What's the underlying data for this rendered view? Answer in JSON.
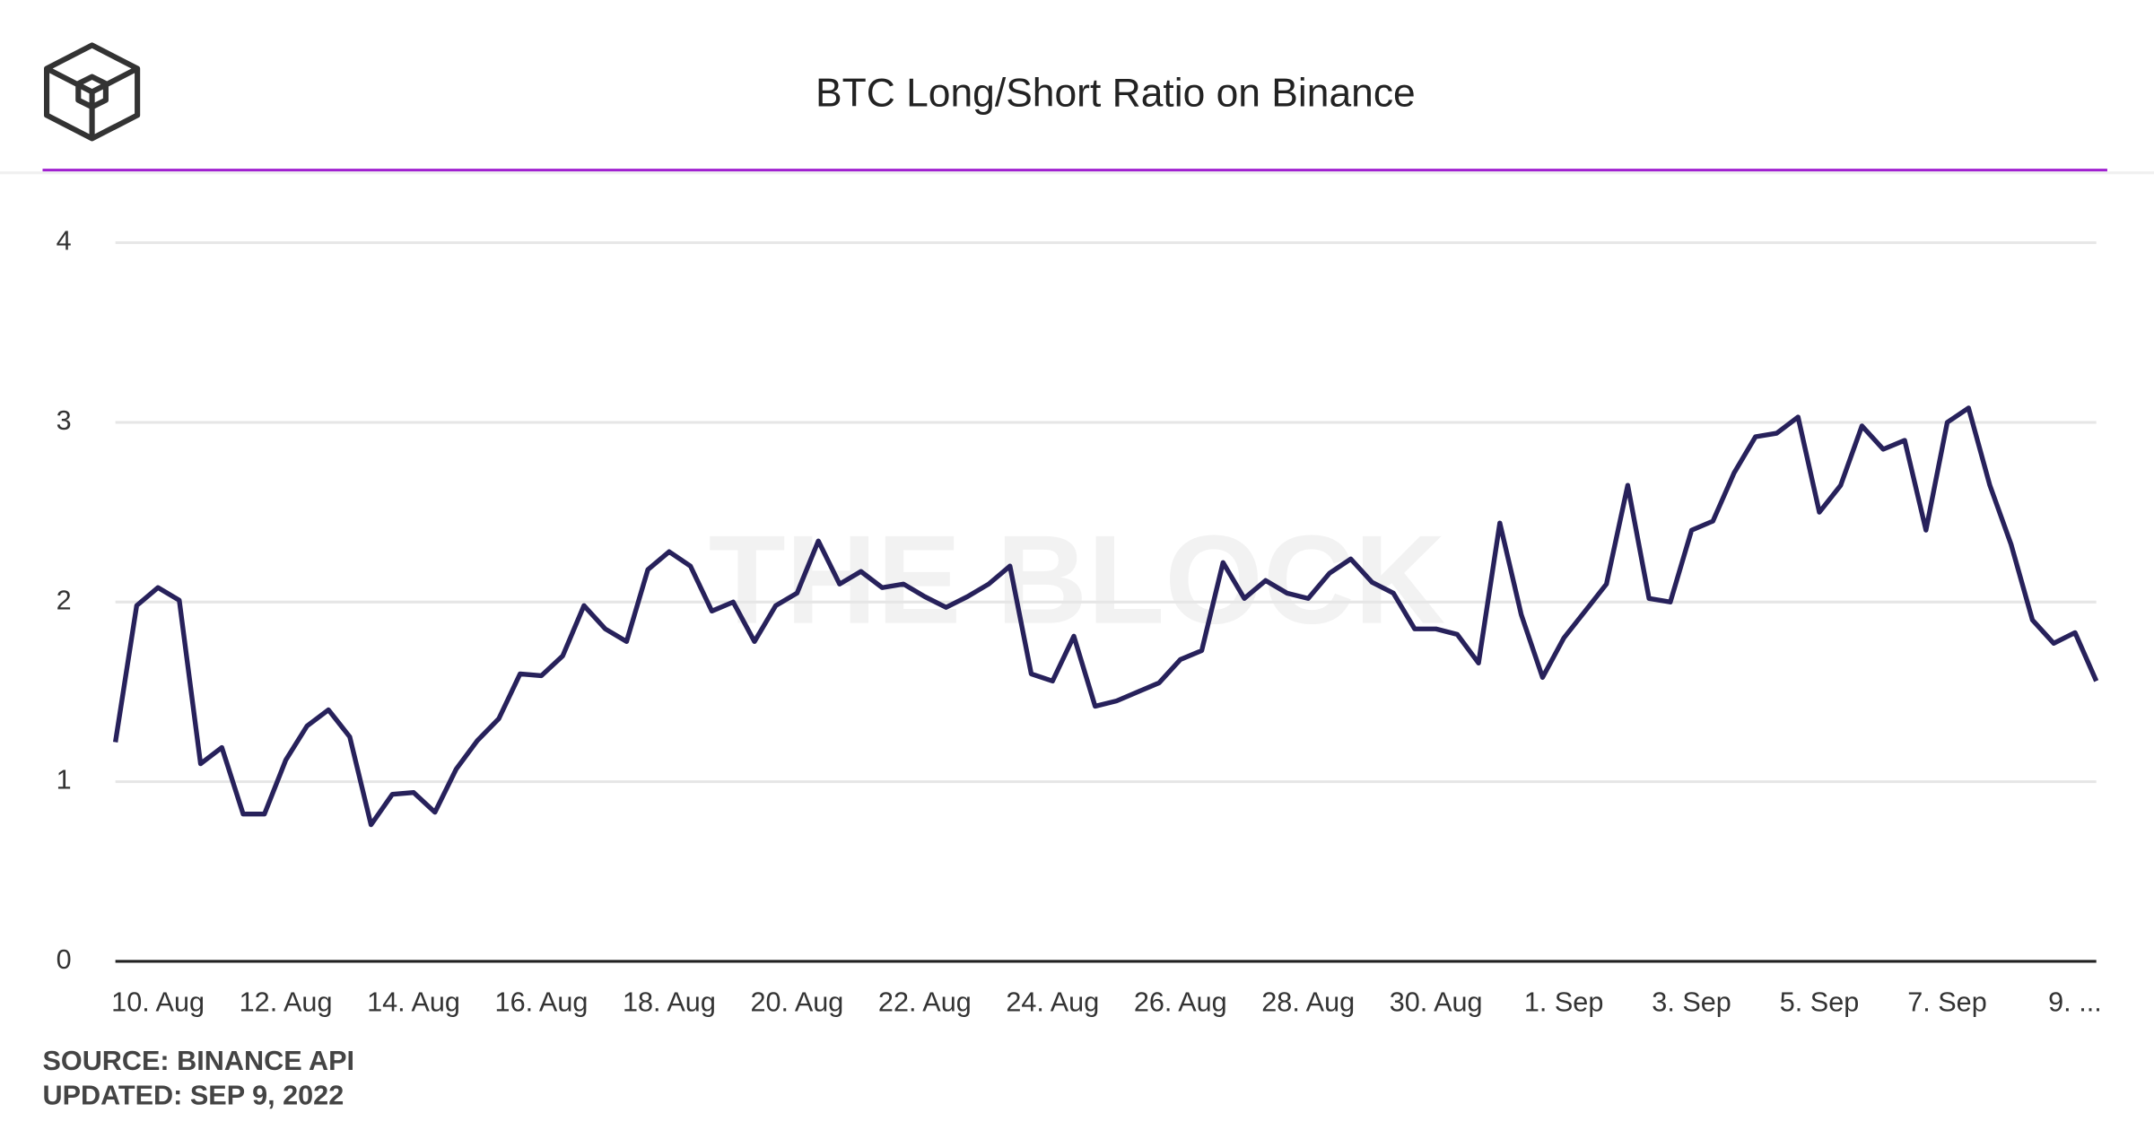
{
  "chart_data": {
    "type": "line",
    "title": "BTC Long/Short Ratio on Binance",
    "watermark": "THE BLOCK",
    "source": "SOURCE: BINANCE API",
    "updated": "UPDATED: SEP 9, 2022",
    "categories": [
      null,
      null,
      "10. Aug",
      null,
      null,
      null,
      null,
      null,
      "12. Aug",
      null,
      null,
      null,
      null,
      null,
      "14. Aug",
      null,
      null,
      null,
      null,
      null,
      "16. Aug",
      null,
      null,
      null,
      null,
      null,
      "18. Aug",
      null,
      null,
      null,
      null,
      null,
      "20. Aug",
      null,
      null,
      null,
      null,
      null,
      "22. Aug",
      null,
      null,
      null,
      null,
      null,
      "24. Aug",
      null,
      null,
      null,
      null,
      null,
      "26. Aug",
      null,
      null,
      null,
      null,
      null,
      "28. Aug",
      null,
      null,
      null,
      null,
      null,
      "30. Aug",
      null,
      null,
      null,
      null,
      null,
      "1. Sep",
      null,
      null,
      null,
      null,
      null,
      "3. Sep",
      null,
      null,
      null,
      null,
      null,
      "5. Sep",
      null,
      null,
      null,
      null,
      null,
      "7. Sep",
      null,
      null,
      null,
      null,
      null,
      "9. ...",
      null
    ],
    "series": [
      {
        "name": "Long/Short Ratio",
        "color": "#27215b",
        "values": [
          1.22,
          1.98,
          2.08,
          2.01,
          1.1,
          1.19,
          0.82,
          0.82,
          1.12,
          1.31,
          1.4,
          1.25,
          0.76,
          0.93,
          0.94,
          0.83,
          1.07,
          1.23,
          1.35,
          1.6,
          1.59,
          1.7,
          1.98,
          1.85,
          1.78,
          2.18,
          2.28,
          2.2,
          1.95,
          2.0,
          1.78,
          1.98,
          2.05,
          2.34,
          2.1,
          2.17,
          2.08,
          2.1,
          2.03,
          1.97,
          2.03,
          2.1,
          2.2,
          1.6,
          1.56,
          1.81,
          1.42,
          1.45,
          1.5,
          1.55,
          1.68,
          1.73,
          2.22,
          2.02,
          2.12,
          2.05,
          2.02,
          2.16,
          2.24,
          2.11,
          2.05,
          1.85,
          1.85,
          1.82,
          1.66,
          2.44,
          1.93,
          1.58,
          1.8,
          1.95,
          2.1,
          2.65,
          2.02,
          2.0,
          2.4,
          2.45,
          2.72,
          2.92,
          2.94,
          3.03,
          2.5,
          2.65,
          2.98,
          2.85,
          2.9,
          2.4,
          3.0,
          3.08,
          2.65,
          2.32,
          1.9,
          1.77,
          1.83,
          1.56
        ]
      }
    ],
    "ylim": [
      0,
      4
    ],
    "yticks": [
      0,
      1,
      2,
      3,
      4
    ],
    "grid": true
  }
}
